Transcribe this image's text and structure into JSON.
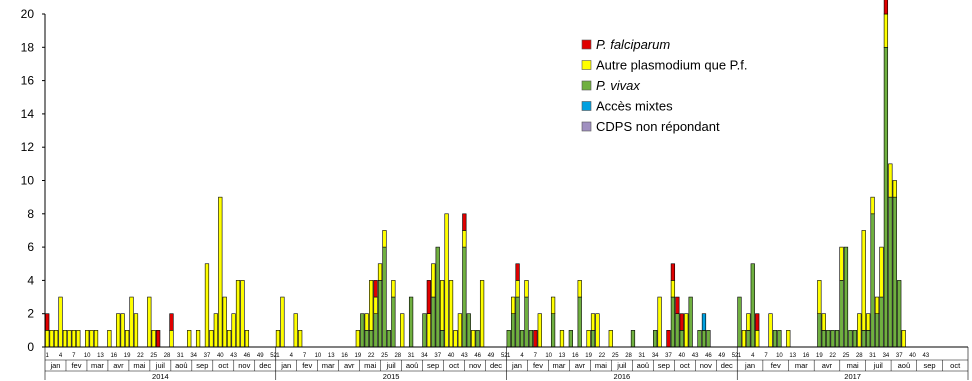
{
  "chart_data": {
    "type": "bar",
    "stacked": true,
    "ylim": [
      0,
      20
    ],
    "yticks": [
      "0",
      "2",
      "4",
      "6",
      "8",
      "10",
      "12",
      "14",
      "16",
      "18",
      "20"
    ],
    "series": [
      {
        "name": "P. falciparum",
        "italic": true,
        "color": "#e00000"
      },
      {
        "name": "Autre plasmodium que P.f.",
        "italic": false,
        "color": "#ffff00"
      },
      {
        "name": "P. vivax",
        "italic": true,
        "color": "#70b040"
      },
      {
        "name": "Accès mixtes",
        "italic": false,
        "color": "#00a0e0"
      },
      {
        "name": "CDPS non répondant",
        "italic": false,
        "color": "#a090c0"
      }
    ],
    "legend_position": "top-right",
    "years": [
      {
        "label": "2014",
        "weeks": 52,
        "months": [
          "jan",
          "fev",
          "mar",
          "avr",
          "mai",
          "juil",
          "aoû",
          "sep",
          "oct",
          "nov",
          "dec"
        ],
        "week_labels": [
          "1",
          "4",
          "7",
          "10",
          "13",
          "16",
          "19",
          "22",
          "25",
          "28",
          "31",
          "34",
          "37",
          "40",
          "43",
          "46",
          "49",
          "52"
        ],
        "falciparum": [
          1,
          0,
          0,
          0,
          0,
          0,
          0,
          0,
          0,
          0,
          0,
          0,
          0,
          0,
          0,
          0,
          0,
          0,
          0,
          0,
          0,
          0,
          0,
          0,
          0,
          1,
          0,
          0,
          1,
          0,
          0,
          0,
          0,
          0,
          0,
          0,
          0,
          0,
          0,
          0,
          0,
          0,
          0,
          0,
          0,
          0,
          0,
          0,
          0,
          0,
          0,
          0
        ],
        "autre": [
          1,
          1,
          1,
          3,
          1,
          1,
          1,
          1,
          0,
          1,
          1,
          1,
          0,
          0,
          1,
          0,
          2,
          2,
          1,
          3,
          2,
          0,
          0,
          3,
          1,
          0,
          0,
          0,
          1,
          0,
          0,
          0,
          1,
          0,
          1,
          0,
          5,
          1,
          2,
          9,
          3,
          1,
          2,
          4,
          4,
          1,
          0,
          0,
          0,
          0,
          0,
          0
        ],
        "vivax": [
          0,
          0,
          0,
          0,
          0,
          0,
          0,
          0,
          0,
          0,
          0,
          0,
          0,
          0,
          0,
          0,
          0,
          0,
          0,
          0,
          0,
          0,
          0,
          0,
          0,
          0,
          0,
          0,
          0,
          0,
          0,
          0,
          0,
          0,
          0,
          0,
          0,
          0,
          0,
          0,
          0,
          0,
          0,
          0,
          0,
          0,
          0,
          0,
          0,
          0,
          0,
          0
        ],
        "mixtes": [
          0,
          0,
          0,
          0,
          0,
          0,
          0,
          0,
          0,
          0,
          0,
          0,
          0,
          0,
          0,
          0,
          0,
          0,
          0,
          0,
          0,
          0,
          0,
          0,
          0,
          0,
          0,
          0,
          0,
          0,
          0,
          0,
          0,
          0,
          0,
          0,
          0,
          0,
          0,
          0,
          0,
          0,
          0,
          0,
          0,
          0,
          0,
          0,
          0,
          0,
          0,
          0
        ]
      },
      {
        "label": "2015",
        "weeks": 52,
        "months": [
          "jan",
          "fev",
          "mar",
          "avr",
          "mai",
          "juil",
          "aoû",
          "sep",
          "oct",
          "nov",
          "dec"
        ],
        "week_labels": [
          "1",
          "4",
          "7",
          "10",
          "13",
          "16",
          "19",
          "22",
          "25",
          "28",
          "31",
          "34",
          "37",
          "40",
          "43",
          "46",
          "49",
          "52"
        ],
        "falciparum": [
          0,
          0,
          0,
          0,
          0,
          0,
          0,
          0,
          0,
          0,
          0,
          0,
          0,
          0,
          0,
          0,
          0,
          0,
          0,
          0,
          0,
          0,
          1,
          0,
          0,
          0,
          0,
          0,
          0,
          0,
          0,
          0,
          0,
          0,
          2,
          0,
          0,
          0,
          0,
          0,
          0,
          0,
          1,
          0,
          0,
          0,
          0,
          0,
          0,
          0,
          0,
          0
        ],
        "autre": [
          1,
          3,
          0,
          0,
          2,
          1,
          0,
          0,
          0,
          0,
          0,
          0,
          0,
          0,
          0,
          0,
          0,
          0,
          1,
          0,
          1,
          3,
          1,
          1,
          1,
          0,
          1,
          0,
          2,
          0,
          0,
          0,
          0,
          0,
          2,
          2,
          0,
          3,
          8,
          4,
          1,
          2,
          1,
          0,
          1,
          0,
          4,
          0,
          0,
          0,
          0,
          0
        ],
        "vivax": [
          0,
          0,
          0,
          0,
          0,
          0,
          0,
          0,
          0,
          0,
          0,
          0,
          0,
          0,
          0,
          0,
          0,
          0,
          0,
          2,
          1,
          1,
          2,
          4,
          6,
          1,
          3,
          0,
          0,
          0,
          3,
          0,
          0,
          2,
          0,
          3,
          6,
          1,
          0,
          0,
          0,
          0,
          6,
          2,
          0,
          1,
          0,
          0,
          0,
          0,
          0,
          0
        ],
        "mixtes": [
          0,
          0,
          0,
          0,
          0,
          0,
          0,
          0,
          0,
          0,
          0,
          0,
          0,
          0,
          0,
          0,
          0,
          0,
          0,
          0,
          0,
          0,
          0,
          0,
          0,
          0,
          0,
          0,
          0,
          0,
          0,
          0,
          0,
          0,
          0,
          0,
          0,
          0,
          0,
          0,
          0,
          0,
          0,
          0,
          0,
          0,
          0,
          0,
          0,
          0,
          0,
          0
        ]
      },
      {
        "label": "2016",
        "weeks": 52,
        "months": [
          "jan",
          "fev",
          "mar",
          "avr",
          "mai",
          "juil",
          "aoû",
          "sep",
          "oct",
          "nov",
          "dec"
        ],
        "week_labels": [
          "1",
          "4",
          "7",
          "10",
          "13",
          "16",
          "19",
          "22",
          "25",
          "28",
          "31",
          "34",
          "37",
          "40",
          "43",
          "46",
          "49",
          "52"
        ],
        "falciparum": [
          0,
          0,
          1,
          0,
          0,
          0,
          1,
          0,
          0,
          0,
          0,
          0,
          0,
          0,
          0,
          0,
          0,
          0,
          0,
          0,
          0,
          0,
          0,
          0,
          0,
          0,
          0,
          0,
          0,
          0,
          0,
          0,
          0,
          0,
          0,
          0,
          1,
          1,
          1,
          1,
          0,
          0,
          0,
          0,
          0,
          0,
          0,
          0,
          0,
          0,
          0,
          0
        ],
        "autre": [
          0,
          1,
          1,
          0,
          1,
          0,
          0,
          2,
          0,
          0,
          1,
          0,
          1,
          0,
          0,
          0,
          1,
          0,
          1,
          1,
          2,
          0,
          0,
          1,
          0,
          0,
          0,
          0,
          0,
          0,
          0,
          0,
          0,
          0,
          3,
          0,
          0,
          1,
          0,
          0,
          2,
          0,
          0,
          0,
          0,
          0,
          0,
          0,
          0,
          0,
          0,
          0
        ],
        "vivax": [
          1,
          2,
          3,
          1,
          3,
          1,
          0,
          0,
          0,
          0,
          2,
          0,
          0,
          0,
          1,
          0,
          3,
          0,
          0,
          1,
          0,
          0,
          0,
          0,
          0,
          0,
          0,
          0,
          1,
          0,
          0,
          0,
          0,
          1,
          0,
          0,
          0,
          3,
          2,
          1,
          0,
          3,
          0,
          1,
          1,
          1,
          0,
          0,
          0,
          0,
          0,
          0
        ],
        "mixtes": [
          0,
          0,
          0,
          0,
          0,
          0,
          0,
          0,
          0,
          0,
          0,
          0,
          0,
          0,
          0,
          0,
          0,
          0,
          0,
          0,
          0,
          0,
          0,
          0,
          0,
          0,
          0,
          0,
          0,
          0,
          0,
          0,
          0,
          0,
          0,
          0,
          0,
          0,
          0,
          0,
          0,
          0,
          0,
          0,
          1,
          0,
          0,
          0,
          0,
          0,
          0,
          0
        ]
      },
      {
        "label": "2017",
        "weeks": 52,
        "months": [
          "jan",
          "fev",
          "mar",
          "avr",
          "mai",
          "juil",
          "aoû",
          "sep",
          "oct"
        ],
        "week_labels": [
          "1",
          "4",
          "7",
          "10",
          "13",
          "16",
          "19",
          "22",
          "25",
          "28",
          "31",
          "34",
          "37",
          "40",
          "43"
        ],
        "falciparum": [
          0,
          0,
          0,
          0,
          1,
          0,
          0,
          0,
          0,
          0,
          0,
          0,
          0,
          0,
          0,
          0,
          0,
          0,
          0,
          0,
          0,
          0,
          0,
          0,
          0,
          0,
          0,
          0,
          0,
          0,
          0,
          0,
          0,
          1,
          0,
          0,
          0,
          0,
          0,
          0,
          0,
          0,
          0,
          0,
          0,
          0,
          0,
          0,
          0,
          0,
          0,
          0
        ],
        "autre": [
          0,
          1,
          1,
          0,
          1,
          0,
          0,
          2,
          0,
          0,
          0,
          1,
          0,
          0,
          0,
          0,
          0,
          0,
          2,
          1,
          0,
          0,
          0,
          2,
          0,
          0,
          0,
          2,
          6,
          1,
          1,
          1,
          3,
          2,
          2,
          1,
          0,
          1,
          0,
          0,
          0,
          0,
          0,
          0,
          0,
          0,
          0,
          0,
          0,
          0,
          0,
          0
        ],
        "vivax": [
          3,
          0,
          1,
          5,
          0,
          0,
          0,
          0,
          1,
          1,
          0,
          0,
          0,
          0,
          0,
          0,
          0,
          0,
          2,
          1,
          1,
          1,
          1,
          4,
          6,
          1,
          1,
          0,
          1,
          1,
          8,
          2,
          3,
          18,
          9,
          9,
          4,
          0,
          0,
          0,
          0,
          0,
          0,
          0,
          0,
          0,
          0,
          0,
          0,
          0,
          0,
          0
        ],
        "mixtes": [
          0,
          0,
          0,
          0,
          0,
          0,
          0,
          0,
          0,
          0,
          0,
          0,
          0,
          0,
          0,
          0,
          0,
          0,
          0,
          0,
          0,
          0,
          0,
          0,
          0,
          0,
          0,
          0,
          0,
          0,
          0,
          0,
          0,
          0,
          0,
          0,
          0,
          0,
          0,
          0,
          0,
          0,
          0,
          0,
          0,
          0,
          0,
          0,
          0,
          0,
          0,
          0
        ]
      }
    ]
  }
}
